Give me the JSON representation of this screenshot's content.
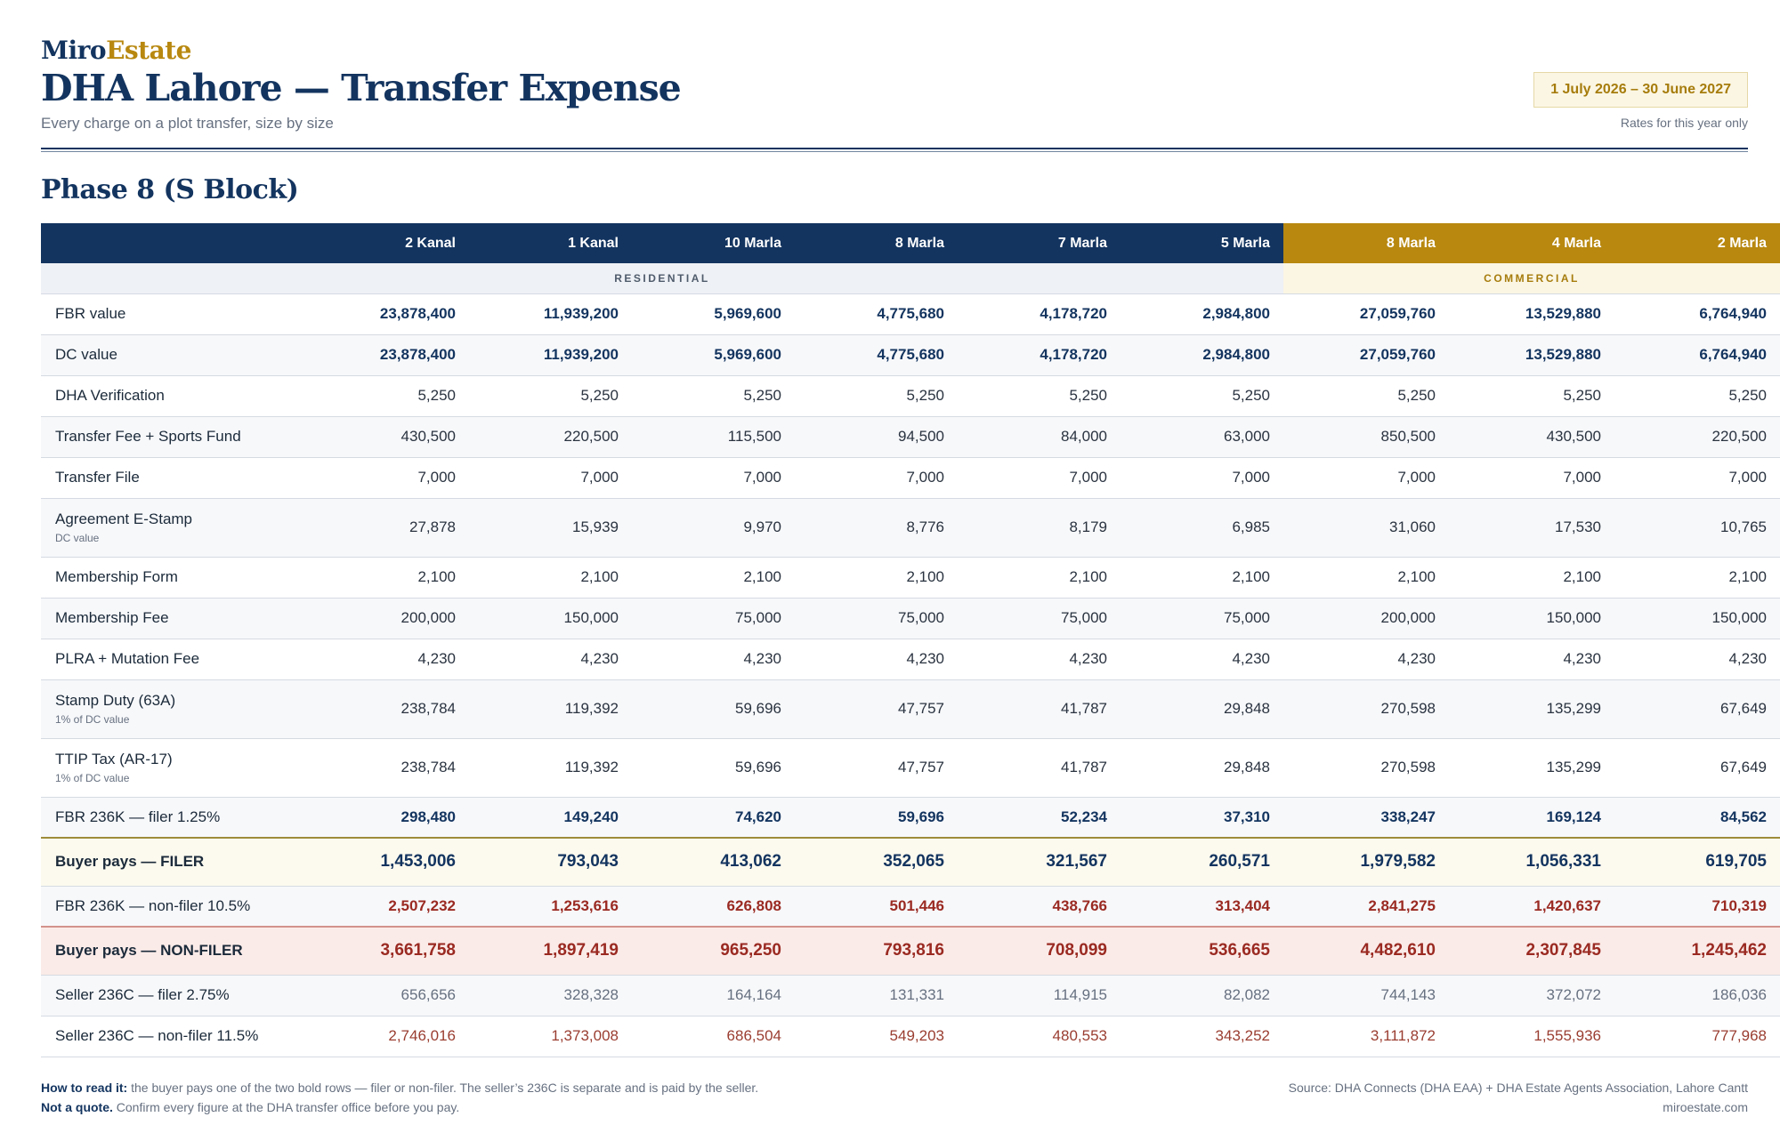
{
  "header": {
    "brand_part1": "Miro",
    "brand_part2": "Estate",
    "title": "DHA Lahore — Transfer Expense",
    "subtitle": "Every charge on a plot transfer, size by size",
    "date_range": "1 July 2026 – 30 June 2027",
    "rates_note": "Rates for this year only"
  },
  "section": {
    "title": "Phase 8 (S Block)"
  },
  "table": {
    "columns": [
      "2 Kanal",
      "1 Kanal",
      "10 Marla",
      "8 Marla",
      "7 Marla",
      "5 Marla",
      "8 Marla",
      "4 Marla",
      "2 Marla"
    ],
    "groups": {
      "residential": "RESIDENTIAL",
      "commercial": "COMMERCIAL"
    },
    "rows": [
      {
        "label": "FBR value",
        "note": "",
        "values": [
          "23,878,400",
          "11,939,200",
          "5,969,600",
          "4,775,680",
          "4,178,720",
          "2,984,800",
          "27,059,760",
          "13,529,880",
          "6,764,940"
        ]
      },
      {
        "label": "DC value",
        "note": "",
        "values": [
          "23,878,400",
          "11,939,200",
          "5,969,600",
          "4,775,680",
          "4,178,720",
          "2,984,800",
          "27,059,760",
          "13,529,880",
          "6,764,940"
        ]
      },
      {
        "label": "DHA Verification",
        "note": "",
        "values": [
          "5,250",
          "5,250",
          "5,250",
          "5,250",
          "5,250",
          "5,250",
          "5,250",
          "5,250",
          "5,250"
        ]
      },
      {
        "label": "Transfer Fee + Sports Fund",
        "note": "",
        "values": [
          "430,500",
          "220,500",
          "115,500",
          "94,500",
          "84,000",
          "63,000",
          "850,500",
          "430,500",
          "220,500"
        ]
      },
      {
        "label": "Transfer File",
        "note": "",
        "values": [
          "7,000",
          "7,000",
          "7,000",
          "7,000",
          "7,000",
          "7,000",
          "7,000",
          "7,000",
          "7,000"
        ]
      },
      {
        "label": "Agreement E-Stamp",
        "note": "DC value",
        "values": [
          "27,878",
          "15,939",
          "9,970",
          "8,776",
          "8,179",
          "6,985",
          "31,060",
          "17,530",
          "10,765"
        ]
      },
      {
        "label": "Membership Form",
        "note": "",
        "values": [
          "2,100",
          "2,100",
          "2,100",
          "2,100",
          "2,100",
          "2,100",
          "2,100",
          "2,100",
          "2,100"
        ]
      },
      {
        "label": "Membership Fee",
        "note": "",
        "values": [
          "200,000",
          "150,000",
          "75,000",
          "75,000",
          "75,000",
          "75,000",
          "200,000",
          "150,000",
          "150,000"
        ]
      },
      {
        "label": "PLRA + Mutation Fee",
        "note": "",
        "values": [
          "4,230",
          "4,230",
          "4,230",
          "4,230",
          "4,230",
          "4,230",
          "4,230",
          "4,230",
          "4,230"
        ]
      },
      {
        "label": "Stamp Duty (63A)",
        "note": "1% of DC value",
        "values": [
          "238,784",
          "119,392",
          "59,696",
          "47,757",
          "41,787",
          "29,848",
          "270,598",
          "135,299",
          "67,649"
        ]
      },
      {
        "label": "TTIP Tax (AR-17)",
        "note": "1% of DC value",
        "values": [
          "238,784",
          "119,392",
          "59,696",
          "47,757",
          "41,787",
          "29,848",
          "270,598",
          "135,299",
          "67,649"
        ]
      },
      {
        "label": "FBR 236K — filer 1.25%",
        "note": "",
        "values": [
          "298,480",
          "149,240",
          "74,620",
          "59,696",
          "52,234",
          "37,310",
          "338,247",
          "169,124",
          "84,562"
        ]
      },
      {
        "label": "Buyer pays — FILER",
        "note": "",
        "values": [
          "1,453,006",
          "793,043",
          "413,062",
          "352,065",
          "321,567",
          "260,571",
          "1,979,582",
          "1,056,331",
          "619,705"
        ]
      },
      {
        "label": "FBR 236K — non-filer 10.5%",
        "note": "",
        "values": [
          "2,507,232",
          "1,253,616",
          "626,808",
          "501,446",
          "438,766",
          "313,404",
          "2,841,275",
          "1,420,637",
          "710,319"
        ]
      },
      {
        "label": "Buyer pays — NON-FILER",
        "note": "",
        "values": [
          "3,661,758",
          "1,897,419",
          "965,250",
          "793,816",
          "708,099",
          "536,665",
          "4,482,610",
          "2,307,845",
          "1,245,462"
        ]
      },
      {
        "label": "Seller 236C — filer 2.75%",
        "note": "",
        "values": [
          "656,656",
          "328,328",
          "164,164",
          "131,331",
          "114,915",
          "82,082",
          "744,143",
          "372,072",
          "186,036"
        ]
      },
      {
        "label": "Seller 236C — non-filer 11.5%",
        "note": "",
        "values": [
          "2,746,016",
          "1,373,008",
          "686,504",
          "549,203",
          "480,553",
          "343,252",
          "3,111,872",
          "1,555,936",
          "777,968"
        ]
      }
    ]
  },
  "footer": {
    "how_label": "How to read it:",
    "how_text": " the buyer pays one of the two bold rows — filer or non-filer. The seller’s 236C is separate and is paid by the seller.",
    "quote_label": "Not a quote.",
    "quote_text": " Confirm every figure at the DHA transfer office before you pay.",
    "source": "Source: DHA Connects (DHA EAA) + DHA Estate Agents Association, Lahore Cantt",
    "site": "miroestate.com"
  }
}
